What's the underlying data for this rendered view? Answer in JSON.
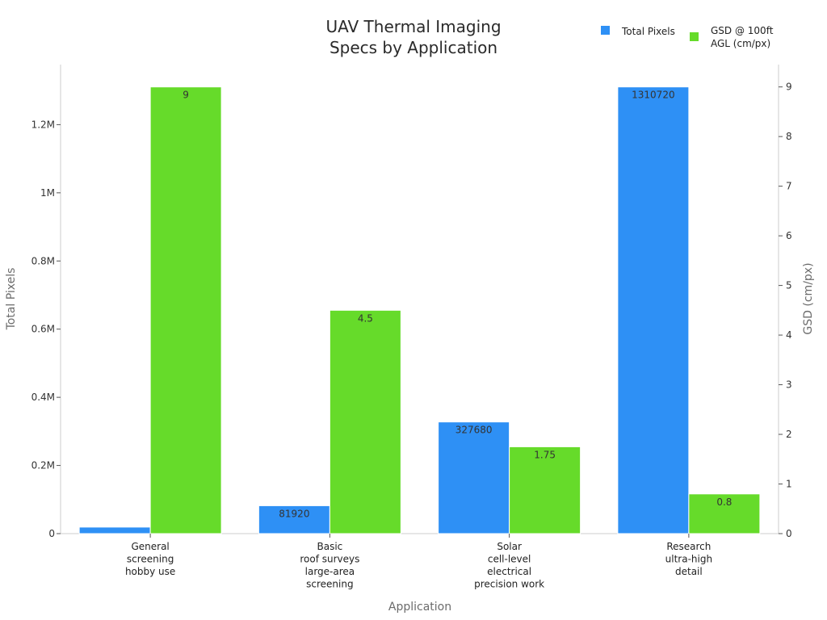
{
  "chart_data": {
    "type": "bar",
    "title": [
      "UAV Thermal Imaging",
      "Specs by Application"
    ],
    "xlabel": "Application",
    "ylabel_left": "Total Pixels",
    "ylabel_right": "GSD (cm/px)",
    "categories": [
      [
        "General",
        "screening",
        "hobby use"
      ],
      [
        "Basic",
        "roof surveys",
        "large-area",
        "screening"
      ],
      [
        "Solar",
        "cell-level",
        "electrical",
        "precision work"
      ],
      [
        "Research",
        "ultra-high",
        "detail"
      ]
    ],
    "series": [
      {
        "name": "Total Pixels",
        "axis": "left",
        "color": "#2e90f5",
        "values": [
          19200,
          81920,
          327680,
          1310720
        ],
        "labels": [
          "",
          "81920",
          "327680",
          "1310720"
        ]
      },
      {
        "name": "GSD @ 100ft AGL (cm/px)",
        "legend_lines": [
          "GSD @ 100ft",
          "AGL (cm/px)"
        ],
        "axis": "right",
        "color": "#66db2a",
        "values": [
          9,
          4.5,
          1.75,
          0.8
        ],
        "labels": [
          "9",
          "4.5",
          "1.75",
          "0.8"
        ]
      }
    ],
    "ylim_left": [
      0,
      1376256
    ],
    "yticks_left": [
      0,
      200000,
      400000,
      600000,
      800000,
      1000000,
      1200000
    ],
    "yticklabels_left": [
      "0",
      "0.2M",
      "0.4M",
      "0.6M",
      "0.8M",
      "1M",
      "1.2M"
    ],
    "ylim_right": [
      0,
      9.45
    ],
    "yticks_right": [
      0,
      1,
      2,
      3,
      4,
      5,
      6,
      7,
      8,
      9
    ],
    "yticklabels_right": [
      "0",
      "1",
      "2",
      "3",
      "4",
      "5",
      "6",
      "7",
      "8",
      "9"
    ],
    "legend_position": "top-right",
    "grid": false
  }
}
